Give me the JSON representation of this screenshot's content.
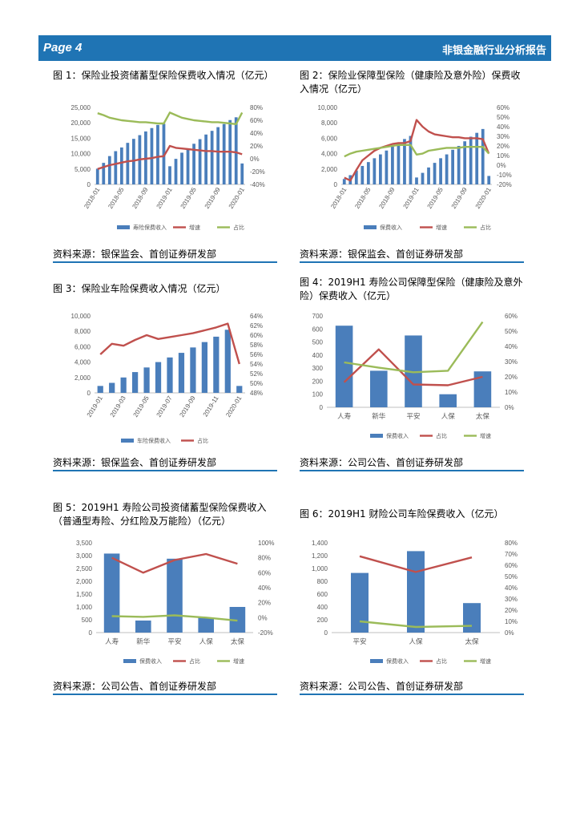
{
  "header": {
    "page": "Page 4",
    "title": "非银金融行业分析报告"
  },
  "colors": {
    "blue": "#4a7ebb",
    "red": "#c0504d",
    "green": "#9bbb59",
    "header": "#1f74b4"
  },
  "figures": [
    {
      "title": "图 1：保险业投资储蓄型保险保费收入情况（亿元）",
      "source": "资料来源：银保监会、首创证券研发部",
      "chart_data": {
        "type": "bar+line",
        "left_axis": {
          "ticks": [
            "0",
            "5,000",
            "10,000",
            "15,000",
            "20,000",
            "25,000"
          ],
          "range": [
            0,
            25000
          ]
        },
        "right_axis": {
          "ticks": [
            "-40%",
            "-20%",
            "0%",
            "20%",
            "40%",
            "60%",
            "80%"
          ],
          "range": [
            -40,
            80
          ]
        },
        "x_labels": [
          "2018-01",
          "2018-05",
          "2018-09",
          "2019-01",
          "2019-05",
          "2019-09",
          "2020-01"
        ],
        "x_label_at": [
          0,
          4,
          8,
          12,
          16,
          20,
          24
        ],
        "bars": {
          "name": "寿险保费收入",
          "values": [
            5100,
            7000,
            9200,
            10800,
            12000,
            13500,
            14800,
            16000,
            17200,
            18300,
            19300,
            19700,
            5900,
            8300,
            10300,
            11600,
            13200,
            14700,
            16200,
            17400,
            18600,
            19600,
            20900,
            21800,
            6800
          ]
        },
        "lines": [
          {
            "name": "增速",
            "color": "red",
            "values": [
              -16,
              -13,
              -10,
              -8,
              -6,
              -4,
              -3,
              -1,
              0,
              1,
              3,
              4,
              20,
              17,
              16,
              15,
              14,
              13,
              12,
              12,
              11,
              11,
              11,
              10,
              7
            ]
          },
          {
            "name": "占比",
            "color": "green",
            "values": [
              71,
              68,
              64,
              62,
              60,
              59,
              58,
              57,
              57,
              56,
              55,
              55,
              72,
              68,
              64,
              62,
              60,
              59,
              58,
              57,
              57,
              56,
              55,
              54,
              72
            ]
          }
        ]
      }
    },
    {
      "title": "图 2：保险业保障型保险（健康险及意外险）保费收入情况（亿元）",
      "source": "资料来源：银保监会、首创证券研发部",
      "chart_data": {
        "type": "bar+line",
        "left_axis": {
          "ticks": [
            "0",
            "2,000",
            "4,000",
            "6,000",
            "8,000",
            "10,000"
          ],
          "range": [
            0,
            10000
          ]
        },
        "right_axis": {
          "ticks": [
            "-20%",
            "-10%",
            "0%",
            "10%",
            "20%",
            "30%",
            "40%",
            "50%",
            "60%"
          ],
          "range": [
            -20,
            60
          ]
        },
        "x_labels": [
          "2018-01",
          "2018-05",
          "2018-09",
          "2019-01",
          "2019-05",
          "2019-09",
          "2020-01"
        ],
        "x_label_at": [
          0,
          4,
          8,
          12,
          16,
          20,
          24
        ],
        "bars": {
          "name": "保费收入",
          "values": [
            700,
            1200,
            1800,
            2400,
            2900,
            3400,
            3900,
            4400,
            4900,
            5400,
            5900,
            6300,
            900,
            1500,
            2200,
            2800,
            3400,
            3900,
            4500,
            5000,
            5600,
            6200,
            6700,
            7200,
            1100
          ]
        },
        "lines": [
          {
            "name": "增速",
            "color": "red",
            "values": [
              -13,
              -16,
              -5,
              5,
              10,
              15,
              18,
              20,
              22,
              23,
              23,
              25,
              47,
              40,
              35,
              32,
              31,
              30,
              29,
              29,
              28,
              28,
              28,
              27,
              12
            ]
          },
          {
            "name": "占比",
            "color": "green",
            "values": [
              9,
              12,
              14,
              15,
              16,
              17,
              18,
              19,
              20,
              21,
              21,
              21,
              11,
              12,
              15,
              16,
              17,
              18,
              18,
              18,
              19,
              19,
              19,
              19,
              12
            ]
          }
        ]
      }
    },
    {
      "title": "图 3：保险业车险保费收入情况（亿元）",
      "source": "资料来源：银保监会、首创证券研发部",
      "chart_data": {
        "type": "bar+line",
        "left_axis": {
          "ticks": [
            "0",
            "2,000",
            "4,000",
            "6,000",
            "8,000",
            "10,000"
          ],
          "range": [
            0,
            10000
          ]
        },
        "right_axis": {
          "ticks": [
            "48%",
            "50%",
            "52%",
            "54%",
            "56%",
            "58%",
            "60%",
            "62%",
            "64%"
          ],
          "range": [
            48,
            64
          ]
        },
        "x_labels": [
          "2019-01",
          "2019-03",
          "2019-05",
          "2019-07",
          "2019-09",
          "2019-11",
          "2020-01"
        ],
        "x_label_at": [
          0,
          2,
          4,
          6,
          8,
          10,
          12
        ],
        "bars": {
          "name": "车险保费收入",
          "values": [
            900,
            1300,
            2000,
            2700,
            3300,
            4000,
            4600,
            5200,
            5900,
            6600,
            7300,
            8200,
            900
          ]
        },
        "lines": [
          {
            "name": "占比",
            "color": "red",
            "values": [
              56,
              58.2,
              57.8,
              59,
              60,
              59.2,
              59.6,
              60,
              60.4,
              61,
              61.6,
              62.4,
              54
            ]
          }
        ]
      }
    },
    {
      "title": "图 4：2019H1 寿险公司保障型保险（健康险及意外险）保费收入（亿元）",
      "source": "资料来源：公司公告、首创证券研发部",
      "chart_data": {
        "type": "bar+line",
        "categories": [
          "人寿",
          "新华",
          "平安",
          "人保",
          "太保"
        ],
        "left_axis": {
          "ticks": [
            "0",
            "100",
            "200",
            "300",
            "400",
            "500",
            "600",
            "700"
          ],
          "range": [
            0,
            700
          ]
        },
        "right_axis": {
          "ticks": [
            "0%",
            "10%",
            "20%",
            "30%",
            "40%",
            "50%",
            "60%"
          ],
          "range": [
            0,
            60
          ]
        },
        "bars": {
          "name": "保费收入",
          "values": [
            625,
            280,
            550,
            100,
            275
          ]
        },
        "lines": [
          {
            "name": "占比",
            "color": "red",
            "values": [
              16.5,
              38,
              15,
              14.5,
              20
            ]
          },
          {
            "name": "增速",
            "color": "green",
            "values": [
              29.5,
              26,
              23,
              24,
              56
            ]
          }
        ]
      }
    },
    {
      "title": "图 5：2019H1 寿险公司投资储蓄型保险保费收入（普通型寿险、分红险及万能险）（亿元）",
      "source": "资料来源：公司公告、首创证券研发部",
      "chart_data": {
        "type": "bar+line",
        "categories": [
          "人寿",
          "新华",
          "平安",
          "人保",
          "太保"
        ],
        "left_axis": {
          "ticks": [
            "0",
            "500",
            "1,000",
            "1,500",
            "2,000",
            "2,500",
            "3,000",
            "3,500"
          ],
          "range": [
            0,
            3500
          ]
        },
        "right_axis": {
          "ticks": [
            "-20%",
            "0%",
            "20%",
            "40%",
            "60%",
            "80%",
            "100%"
          ],
          "range": [
            -20,
            100
          ]
        },
        "bars": {
          "name": "保费收入",
          "values": [
            3080,
            470,
            2880,
            580,
            1000
          ]
        },
        "lines": [
          {
            "name": "占比",
            "color": "red",
            "values": [
              80,
              60,
              77,
              85,
              72
            ]
          },
          {
            "name": "增速",
            "color": "green",
            "values": [
              2,
              1,
              3,
              0,
              -4
            ]
          }
        ]
      }
    },
    {
      "title": "图 6：2019H1 财险公司车险保费收入（亿元）",
      "source": "资料来源：公司公告、首创证券研发部",
      "chart_data": {
        "type": "bar+line",
        "categories": [
          "平安",
          "人保",
          "太保"
        ],
        "left_axis": {
          "ticks": [
            "0",
            "200",
            "400",
            "600",
            "800",
            "1,000",
            "1,200",
            "1,400"
          ],
          "range": [
            0,
            1400
          ]
        },
        "right_axis": {
          "ticks": [
            "0%",
            "10%",
            "20%",
            "30%",
            "40%",
            "50%",
            "60%",
            "70%",
            "80%"
          ],
          "range": [
            0,
            80
          ]
        },
        "bars": {
          "name": "保费收入",
          "values": [
            930,
            1270,
            460
          ]
        },
        "lines": [
          {
            "name": "占比",
            "color": "red",
            "values": [
              68,
              54,
              67
            ]
          },
          {
            "name": "增速",
            "color": "green",
            "values": [
              10,
              5,
              6
            ]
          }
        ]
      }
    }
  ]
}
